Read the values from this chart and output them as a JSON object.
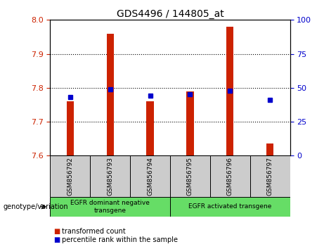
{
  "title": "GDS4496 / 144805_at",
  "samples": [
    "GSM856792",
    "GSM856793",
    "GSM856794",
    "GSM856795",
    "GSM856796",
    "GSM856797"
  ],
  "transformed_count": [
    7.76,
    7.96,
    7.76,
    7.79,
    7.98,
    7.635
  ],
  "percentile_rank": [
    43,
    49,
    44,
    45,
    48,
    41
  ],
  "ylim_left": [
    7.6,
    8.0
  ],
  "ylim_right": [
    0,
    100
  ],
  "yticks_left": [
    7.6,
    7.7,
    7.8,
    7.9,
    8.0
  ],
  "yticks_right": [
    0,
    25,
    50,
    75,
    100
  ],
  "bar_color": "#cc2200",
  "dot_color": "#0000cc",
  "bg_color": "#ffffff",
  "group1_label": "EGFR dominant negative\ntransgene",
  "group2_label": "EGFR activated transgene",
  "group1_indices": [
    0,
    1,
    2
  ],
  "group2_indices": [
    3,
    4,
    5
  ],
  "genotype_label": "genotype/variation",
  "legend_red": "transformed count",
  "legend_blue": "percentile rank within the sample",
  "group_bg": "#66dd66",
  "sample_bg": "#cccccc"
}
